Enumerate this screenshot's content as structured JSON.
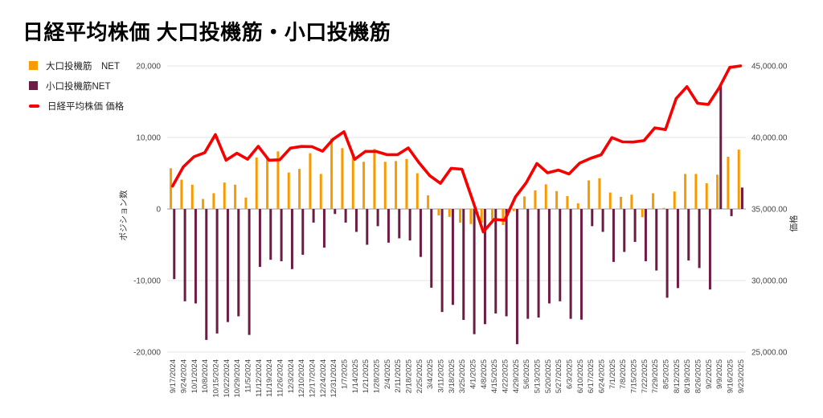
{
  "title": "日経平均株価 大口投機筋・小口投機筋",
  "legend": {
    "items": [
      {
        "label": "大口投機筋　NET",
        "color": "#F89B00",
        "shape": "square"
      },
      {
        "label": "小口投機筋NET",
        "color": "#6E1C44",
        "shape": "square"
      },
      {
        "label": "日経平均株価 価格",
        "color": "#F60000",
        "shape": "line"
      }
    ]
  },
  "chart_data": {
    "type": "combo",
    "categories": [
      "9/17/2024",
      "9/24/2024",
      "10/1/2024",
      "10/8/2024",
      "10/15/2024",
      "10/22/2024",
      "10/29/2024",
      "11/5/2024",
      "11/12/2024",
      "11/19/2024",
      "11/26/2024",
      "12/3/2024",
      "12/10/2024",
      "12/17/2024",
      "12/24/2024",
      "12/31/2024",
      "1/7/2025",
      "1/14/2025",
      "1/21/2025",
      "1/28/2025",
      "2/4/2025",
      "2/11/2025",
      "2/18/2025",
      "2/25/2025",
      "3/4/2025",
      "3/11/2025",
      "3/18/2025",
      "3/25/2025",
      "4/1/2025",
      "4/8/2025",
      "4/15/2025",
      "4/22/2025",
      "4/29/2025",
      "5/6/2025",
      "5/13/2025",
      "5/20/2025",
      "5/27/2025",
      "6/3/2025",
      "6/10/2025",
      "6/17/2025",
      "6/24/2025",
      "7/1/2025",
      "7/8/2025",
      "7/15/2025",
      "7/22/2025",
      "7/29/2025",
      "8/5/2025",
      "8/12/2025",
      "8/19/2025",
      "8/26/2025",
      "9/2/2025",
      "9/9/2025",
      "9/16/2025",
      "9/23/2025"
    ],
    "series": [
      {
        "name": "大口投機筋 NET",
        "type": "bar",
        "axis": "left",
        "color": "#F89B00",
        "values": [
          5700,
          4100,
          3400,
          1400,
          2200,
          3700,
          3400,
          1600,
          7200,
          7300,
          8050,
          5100,
          5600,
          7800,
          4900,
          9850,
          8500,
          7500,
          6600,
          8400,
          6600,
          6700,
          7000,
          5000,
          1900,
          -900,
          -1100,
          -1900,
          -2100,
          -1900,
          -1500,
          -2250,
          -300,
          1760,
          2600,
          3450,
          2500,
          1800,
          800,
          4000,
          4300,
          2300,
          1700,
          2000,
          -1150,
          2200,
          150,
          2450,
          4900,
          4900,
          3600,
          4800,
          7300,
          8300
        ]
      },
      {
        "name": "小口投機筋NET",
        "type": "bar",
        "axis": "left",
        "color": "#6E1C44",
        "values": [
          -9800,
          -12900,
          -13200,
          -18300,
          -17400,
          -15800,
          -15000,
          -17600,
          -8100,
          -7100,
          -7300,
          -8400,
          -6400,
          -1900,
          -5400,
          -700,
          -1900,
          -3200,
          -5000,
          -2400,
          -4700,
          -4100,
          -4400,
          -6700,
          -11000,
          -14400,
          -13400,
          -15500,
          -17500,
          -16100,
          -14600,
          -15000,
          -18900,
          -15350,
          -15170,
          -13200,
          -12900,
          -15350,
          -15470,
          -2400,
          -3200,
          -7400,
          -6000,
          -4600,
          -7300,
          -8600,
          -12400,
          -11050,
          -7200,
          -8250,
          -11250,
          17200,
          -1000,
          3000
        ]
      },
      {
        "name": "日経平均株価 価格",
        "type": "line",
        "axis": "right",
        "color": "#F60000",
        "values": [
          36600,
          37940,
          38650,
          38940,
          40200,
          38410,
          38900,
          38480,
          39380,
          38410,
          38440,
          39250,
          39370,
          39360,
          39040,
          39890,
          40400,
          38470,
          39030,
          39020,
          38800,
          38800,
          39270,
          38240,
          37330,
          36790,
          37840,
          37780,
          35620,
          33400,
          34270,
          34220,
          35840,
          36830,
          38180,
          37530,
          37720,
          37450,
          38210,
          38540,
          38790,
          39990,
          39690,
          39680,
          39780,
          40670,
          40550,
          42720,
          43550,
          42390,
          42310,
          43460,
          44900,
          45000
        ]
      }
    ],
    "left_axis": {
      "title": "ポジション数",
      "min": -20000,
      "max": 20000,
      "ticks": [
        {
          "value": 20000,
          "label": "20,000"
        },
        {
          "value": 10000,
          "label": "10,000"
        },
        {
          "value": 0,
          "label": "0"
        },
        {
          "value": -10000,
          "label": "-10,000"
        },
        {
          "value": -20000,
          "label": "-20,000"
        }
      ]
    },
    "right_axis": {
      "title": "価格",
      "min": 25000,
      "max": 45000,
      "ticks": [
        {
          "value": 45000,
          "label": "45,000.00"
        },
        {
          "value": 40000,
          "label": "40,000.00"
        },
        {
          "value": 35000,
          "label": "35,000.00"
        },
        {
          "value": 30000,
          "label": "30,000.00"
        },
        {
          "value": 25000,
          "label": "25,000.00"
        }
      ]
    },
    "grid": true,
    "legend_position": "top-left",
    "colors": {
      "grid": "#e6e6e6",
      "zero_line": "#9a9a9a",
      "tick_text": "#444444",
      "axis_title_text": "#333333"
    }
  }
}
